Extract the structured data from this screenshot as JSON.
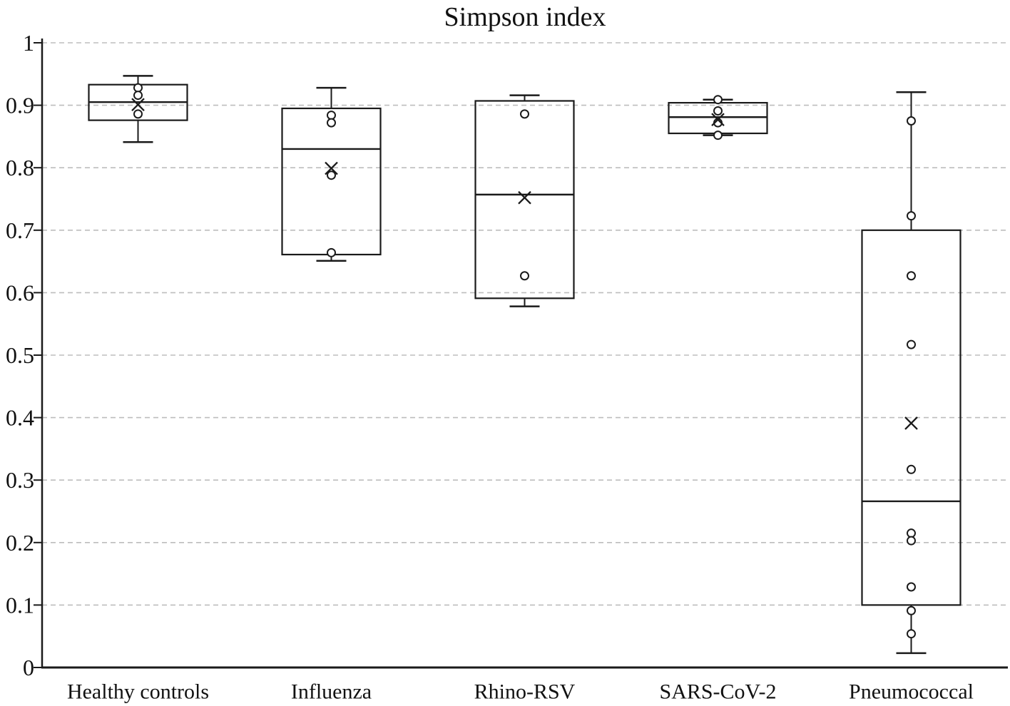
{
  "chart_data": {
    "type": "box",
    "title": "Simpson index",
    "xlabel": "",
    "ylabel": "",
    "grid": "dashed-horizontal",
    "legend": "none",
    "y_axis": {
      "min": 0,
      "max": 1,
      "tick_step": 0.1,
      "ticks": [
        0,
        0.1,
        0.2,
        0.3,
        0.4,
        0.5,
        0.6,
        0.7,
        0.8,
        0.9,
        1
      ],
      "tick_labels": [
        "0",
        "0.1",
        "0.2",
        "0.3",
        "0.4",
        "0.5",
        "0.6",
        "0.7",
        "0.8",
        "0.9",
        "1"
      ]
    },
    "categories": [
      "Healthy controls",
      "Influenza",
      "Rhino-RSV",
      "SARS-CoV-2",
      "Pneumococcal"
    ],
    "series": [
      {
        "category": "Healthy controls",
        "whisker_low": 0.841,
        "q1": 0.876,
        "median": 0.905,
        "q3": 0.933,
        "whisker_high": 0.947,
        "mean": 0.901,
        "points": [
          0.928,
          0.916,
          0.886
        ]
      },
      {
        "category": "Influenza",
        "whisker_low": 0.651,
        "q1": 0.661,
        "median": 0.83,
        "q3": 0.895,
        "whisker_high": 0.928,
        "mean": 0.799,
        "points": [
          0.884,
          0.872,
          0.788,
          0.664
        ]
      },
      {
        "category": "Rhino-RSV",
        "whisker_low": 0.578,
        "q1": 0.591,
        "median": 0.757,
        "q3": 0.907,
        "whisker_high": 0.916,
        "mean": 0.752,
        "points": [
          0.886,
          0.627
        ]
      },
      {
        "category": "SARS-CoV-2",
        "whisker_low": 0.852,
        "q1": 0.855,
        "median": 0.881,
        "q3": 0.904,
        "whisker_high": 0.909,
        "mean": 0.877,
        "points": [
          0.909,
          0.891,
          0.872,
          0.852
        ]
      },
      {
        "category": "Pneumococcal",
        "whisker_low": 0.023,
        "q1": 0.1,
        "median": 0.266,
        "q3": 0.7,
        "whisker_high": 0.921,
        "mean": 0.391,
        "points": [
          0.875,
          0.723,
          0.627,
          0.517,
          0.317,
          0.215,
          0.203,
          0.129,
          0.091,
          0.054
        ]
      }
    ],
    "markers": {
      "mean": "x-cross",
      "data_point": "open-circle"
    },
    "colors": {
      "stroke": "#1a1a1a",
      "grid": "#bdbdbd",
      "background": "#ffffff",
      "text": "#111111"
    }
  }
}
